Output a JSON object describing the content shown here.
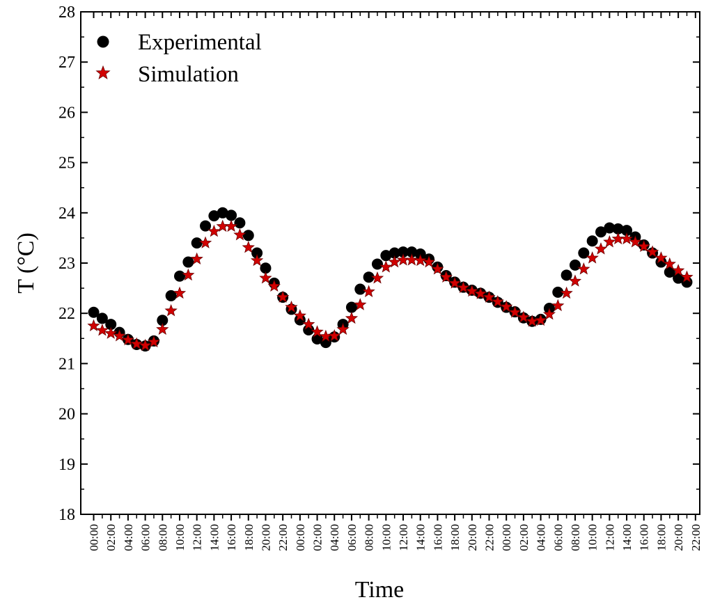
{
  "chart_data": {
    "type": "scatter",
    "xlabel": "Time",
    "ylabel": "T (°C)",
    "ylim": [
      18,
      28
    ],
    "yticks": [
      18,
      19,
      20,
      21,
      22,
      23,
      24,
      25,
      26,
      27,
      28
    ],
    "x_tick_labels": [
      "00:00",
      "02:00",
      "04:00",
      "06:00",
      "08:00",
      "10:00",
      "12:00",
      "14:00",
      "16:00",
      "18:00",
      "20:00",
      "22:00",
      "00:00",
      "02:00",
      "04:00",
      "06:00",
      "08:00",
      "10:00",
      "12:00",
      "14:00",
      "16:00",
      "18:00",
      "20:00",
      "22:00",
      "00:00",
      "02:00",
      "04:00",
      "06:00",
      "08:00",
      "10:00",
      "12:00",
      "14:00",
      "16:00",
      "18:00",
      "20:00",
      "22:00"
    ],
    "x_range_hours": [
      -1.5,
      70.5
    ],
    "grid": false,
    "legend_position": "top-left",
    "colors": {
      "experimental": "#000000",
      "simulation": "#d10000"
    },
    "series": [
      {
        "name": "Experimental",
        "marker": "circle",
        "x": [
          0,
          1,
          2,
          3,
          4,
          5,
          6,
          7,
          8,
          9,
          10,
          11,
          12,
          13,
          14,
          15,
          16,
          17,
          18,
          19,
          20,
          21,
          22,
          23,
          24,
          25,
          26,
          27,
          28,
          29,
          30,
          31,
          32,
          33,
          34,
          35,
          36,
          37,
          38,
          39,
          40,
          41,
          42,
          43,
          44,
          45,
          46,
          47,
          48,
          49,
          50,
          51,
          52,
          53,
          54,
          55,
          56,
          57,
          58,
          59,
          60,
          61,
          62,
          63,
          64,
          65,
          66,
          67,
          68,
          69
        ],
        "y": [
          22.02,
          21.9,
          21.78,
          21.62,
          21.48,
          21.38,
          21.35,
          21.45,
          21.86,
          22.35,
          22.74,
          23.02,
          23.4,
          23.74,
          23.94,
          24.0,
          23.95,
          23.8,
          23.55,
          23.2,
          22.9,
          22.6,
          22.32,
          22.08,
          21.87,
          21.67,
          21.49,
          21.42,
          21.53,
          21.78,
          22.12,
          22.48,
          22.72,
          22.98,
          23.15,
          23.2,
          23.22,
          23.22,
          23.18,
          23.08,
          22.92,
          22.75,
          22.62,
          22.52,
          22.46,
          22.4,
          22.32,
          22.22,
          22.12,
          22.03,
          21.91,
          21.84,
          21.88,
          22.1,
          22.42,
          22.76,
          22.96,
          23.2,
          23.44,
          23.62,
          23.7,
          23.68,
          23.65,
          23.52,
          23.36,
          23.2,
          23.02,
          22.82,
          22.7,
          22.62
        ]
      },
      {
        "name": "Simulation",
        "marker": "star",
        "x": [
          0,
          1,
          2,
          3,
          4,
          5,
          6,
          7,
          8,
          9,
          10,
          11,
          12,
          13,
          14,
          15,
          16,
          17,
          18,
          19,
          20,
          21,
          22,
          23,
          24,
          25,
          26,
          27,
          28,
          29,
          30,
          31,
          32,
          33,
          34,
          35,
          36,
          37,
          38,
          39,
          40,
          41,
          42,
          43,
          44,
          45,
          46,
          47,
          48,
          49,
          50,
          51,
          52,
          53,
          54,
          55,
          56,
          57,
          58,
          59,
          60,
          61,
          62,
          63,
          64,
          65,
          66,
          67,
          68,
          69
        ],
        "y": [
          21.75,
          21.66,
          21.6,
          21.55,
          21.47,
          21.39,
          21.36,
          21.43,
          21.68,
          22.05,
          22.4,
          22.76,
          23.08,
          23.4,
          23.63,
          23.73,
          23.73,
          23.56,
          23.31,
          23.05,
          22.7,
          22.54,
          22.32,
          22.12,
          21.95,
          21.78,
          21.63,
          21.54,
          21.55,
          21.68,
          21.9,
          22.17,
          22.43,
          22.7,
          22.92,
          23.02,
          23.06,
          23.06,
          23.05,
          23.02,
          22.88,
          22.72,
          22.6,
          22.51,
          22.44,
          22.39,
          22.32,
          22.23,
          22.13,
          22.02,
          21.92,
          21.84,
          21.86,
          21.98,
          22.15,
          22.4,
          22.64,
          22.88,
          23.1,
          23.28,
          23.42,
          23.48,
          23.48,
          23.42,
          23.33,
          23.22,
          23.1,
          22.98,
          22.85,
          22.72
        ]
      }
    ]
  }
}
